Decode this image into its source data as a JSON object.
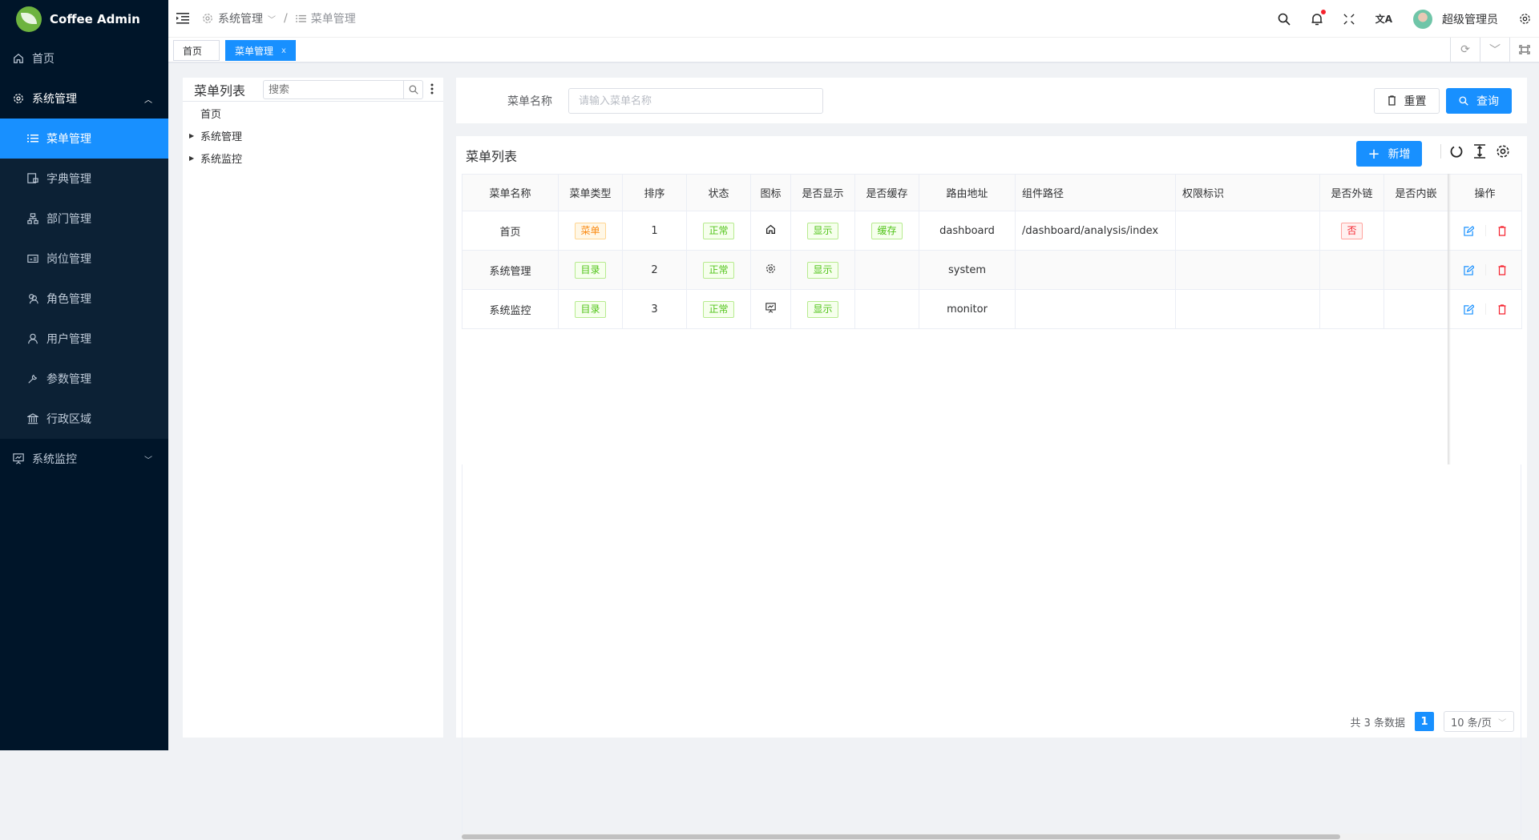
{
  "app": {
    "title": "Coffee Admin",
    "brand_color": "#1890ff",
    "sidebar_bg": "#001529"
  },
  "sidebar": {
    "items": [
      {
        "label": "首页",
        "icon": "home-icon"
      },
      {
        "label": "系统管理",
        "icon": "gear-icon",
        "expanded": true,
        "children": [
          {
            "label": "菜单管理",
            "icon": "list-icon",
            "active": true
          },
          {
            "label": "字典管理",
            "icon": "dictionary-icon"
          },
          {
            "label": "部门管理",
            "icon": "org-tree-icon"
          },
          {
            "label": "岗位管理",
            "icon": "id-card-icon"
          },
          {
            "label": "角色管理",
            "icon": "users-icon"
          },
          {
            "label": "用户管理",
            "icon": "user-icon"
          },
          {
            "label": "参数管理",
            "icon": "wrench-icon"
          },
          {
            "label": "行政区域",
            "icon": "bank-icon"
          }
        ]
      },
      {
        "label": "系统监控",
        "icon": "monitor-icon",
        "expanded": false
      }
    ]
  },
  "header": {
    "breadcrumb": [
      "系统管理",
      "菜单管理"
    ],
    "user": "超级管理员",
    "notification_dot": true
  },
  "tabs": [
    {
      "label": "首页"
    },
    {
      "label": "菜单管理",
      "active": true,
      "close": "x"
    }
  ],
  "tree": {
    "title": "菜单列表",
    "search_placeholder": "搜索",
    "nodes": [
      {
        "label": "首页",
        "has_children": false
      },
      {
        "label": "系统管理",
        "has_children": true
      },
      {
        "label": "系统监控",
        "has_children": true
      }
    ]
  },
  "search": {
    "label": "菜单名称",
    "placeholder": "请输入菜单名称",
    "value": "",
    "reset": "重置",
    "query": "查询"
  },
  "table": {
    "title": "菜单列表",
    "add": "新增",
    "columns": [
      "菜单名称",
      "菜单类型",
      "排序",
      "状态",
      "图标",
      "是否显示",
      "是否缓存",
      "路由地址",
      "组件路径",
      "权限标识",
      "是否外链",
      "是否内嵌",
      "操作"
    ],
    "rows": [
      {
        "name": "首页",
        "type": "菜单",
        "type_color": "orange",
        "sort": "1",
        "status": "正常",
        "icon": "home-icon",
        "visible": "显示",
        "cache": "缓存",
        "path": "dashboard",
        "component": "/dashboard/analysis/index",
        "perm": "",
        "external": "否",
        "embed": ""
      },
      {
        "name": "系统管理",
        "type": "目录",
        "type_color": "green",
        "sort": "2",
        "status": "正常",
        "icon": "gear-icon",
        "visible": "显示",
        "cache": "",
        "path": "system",
        "component": "",
        "perm": "",
        "external": "",
        "embed": ""
      },
      {
        "name": "系统监控",
        "type": "目录",
        "type_color": "green",
        "sort": "3",
        "status": "正常",
        "icon": "monitor-icon",
        "visible": "显示",
        "cache": "",
        "path": "monitor",
        "component": "",
        "perm": "",
        "external": "",
        "embed": ""
      }
    ]
  },
  "pagination": {
    "total_text": "共 3 条数据",
    "current": "1",
    "page_size": "10 条/页"
  }
}
